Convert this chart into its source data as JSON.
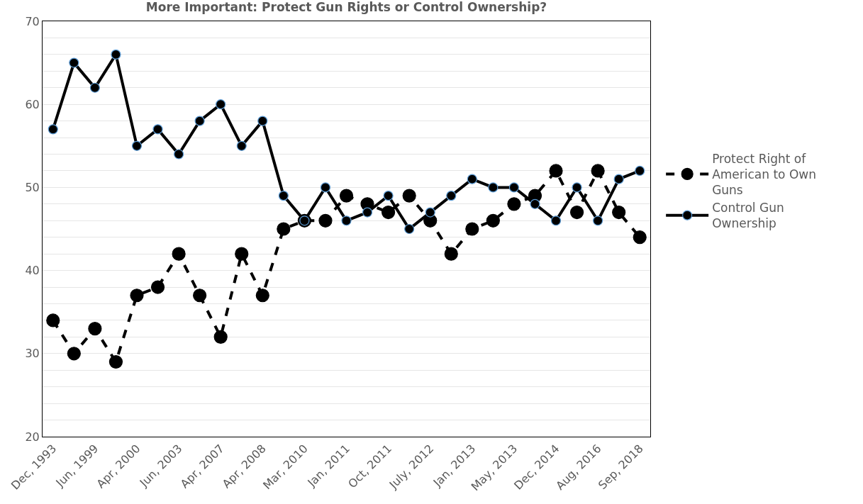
{
  "chart_data": {
    "type": "line",
    "title": "More Important: Protect Gun Rights or Control Ownership?",
    "categories": [
      "Dec, 1993",
      null,
      "Jun, 1999",
      null,
      "Apr, 2000",
      null,
      "Jun, 2003",
      null,
      "Apr, 2007",
      null,
      "Apr, 2008",
      null,
      "Mar, 2010",
      null,
      "Jan, 2011",
      null,
      "Oct, 2011",
      null,
      "July, 2012",
      null,
      "Jan, 2013",
      null,
      "May, 2013",
      null,
      "Dec, 2014",
      null,
      "Aug, 2016",
      null,
      "Sep, 2018"
    ],
    "series": [
      {
        "name": "Protect Right of American to Own Guns",
        "color": "#000000",
        "line_style": "dashed",
        "values": [
          34,
          30,
          33,
          29,
          37,
          38,
          42,
          37,
          32,
          42,
          37,
          45,
          46,
          46,
          49,
          48,
          47,
          49,
          46,
          42,
          45,
          46,
          48,
          49,
          52,
          47,
          52,
          47,
          44
        ]
      },
      {
        "name": "Control Gun Ownership",
        "color": "#000000",
        "line_style": "solid",
        "values": [
          57,
          65,
          62,
          66,
          55,
          57,
          54,
          58,
          60,
          55,
          58,
          49,
          46,
          50,
          46,
          47,
          49,
          45,
          47,
          49,
          51,
          50,
          50,
          48,
          46,
          50,
          46,
          51,
          52
        ]
      }
    ],
    "ylim": [
      20,
      70
    ],
    "yticks": [
      20,
      {
        "value": 22,
        "label": null
      },
      {
        "value": 24,
        "label": null
      },
      {
        "value": 26,
        "label": null
      },
      {
        "value": 28,
        "label": null
      },
      30,
      {
        "value": 32,
        "label": null
      },
      {
        "value": 34,
        "label": null
      },
      {
        "value": 36,
        "label": null
      },
      {
        "value": 38,
        "label": null
      },
      40,
      {
        "value": 42,
        "label": null
      },
      {
        "value": 44,
        "label": null
      },
      {
        "value": 46,
        "label": null
      },
      {
        "value": 48,
        "label": null
      },
      50,
      {
        "value": 52,
        "label": null
      },
      {
        "value": 54,
        "label": null
      },
      {
        "value": 56,
        "label": null
      },
      {
        "value": 58,
        "label": null
      },
      60,
      {
        "value": 62,
        "label": null
      },
      {
        "value": 64,
        "label": null
      },
      {
        "value": 66,
        "label": null
      },
      {
        "value": 68,
        "label": null
      },
      70
    ],
    "grid": "y",
    "legend": "right",
    "marker": "circle"
  }
}
